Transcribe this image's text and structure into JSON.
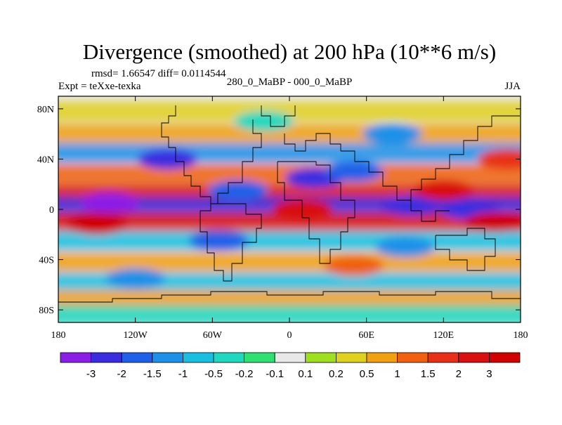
{
  "chart_data": {
    "type": "heatmap",
    "title": "Divergence (smoothed) at 200 hPa (10**6 m/s)",
    "stats_text": "rmsd= 1.66547 diff= 0.0114544",
    "left_label": "Expt = teXxe-texka",
    "center_label": "280_0_MaBP - 000_0_MaBP",
    "right_label": "JJA",
    "x_ticks": [
      "180",
      "120W",
      "60W",
      "0",
      "60E",
      "120E",
      "180"
    ],
    "y_ticks": [
      "80N",
      "40N",
      "0",
      "40S",
      "80S"
    ],
    "x_range": [
      -180,
      180
    ],
    "y_range": [
      -90,
      90
    ],
    "colorbar": {
      "labels": [
        "-3",
        "-2",
        "-1.5",
        "-1",
        "-0.5",
        "-0.2",
        "-0.1",
        "0.1",
        "0.2",
        "0.5",
        "1",
        "1.5",
        "2",
        "3"
      ],
      "colors": [
        "#8b1ee6",
        "#3a2de0",
        "#2060e8",
        "#1e90e8",
        "#18bfe0",
        "#20d8c0",
        "#30e070",
        "#e8e8e8",
        "#9ee020",
        "#e0d020",
        "#f0a010",
        "#f06010",
        "#e83018",
        "#d81010",
        "#d00000"
      ]
    },
    "bands": [
      {
        "lat": 78,
        "value": 0.3
      },
      {
        "lat": 60,
        "value": 0.9
      },
      {
        "lat": 45,
        "value": -1.2
      },
      {
        "lat": 28,
        "value": 1.1
      },
      {
        "lat": 12,
        "value": 2.5
      },
      {
        "lat": 2,
        "value": -2.6
      },
      {
        "lat": -10,
        "value": 2.8
      },
      {
        "lat": -25,
        "value": -0.6
      },
      {
        "lat": -42,
        "value": 0.7
      },
      {
        "lat": -58,
        "value": -0.8
      },
      {
        "lat": -72,
        "value": 0.6
      },
      {
        "lat": -84,
        "value": -0.4
      }
    ],
    "blobs": [
      {
        "lon": -140,
        "lat": 5,
        "value": -3.2
      },
      {
        "lon": -95,
        "lat": 40,
        "value": -2.2
      },
      {
        "lon": -40,
        "lat": 15,
        "value": -2.0
      },
      {
        "lon": 20,
        "lat": 25,
        "value": -2.5
      },
      {
        "lon": 50,
        "lat": 30,
        "value": -1.8
      },
      {
        "lon": 95,
        "lat": 3,
        "value": -2.8
      },
      {
        "lon": 140,
        "lat": 0,
        "value": -2.4
      },
      {
        "lon": 10,
        "lat": 0,
        "value": 2.6
      },
      {
        "lon": 120,
        "lat": 15,
        "value": 2.4
      },
      {
        "lon": 160,
        "lat": -10,
        "value": 3.0
      },
      {
        "lon": -150,
        "lat": -12,
        "value": 3.0
      },
      {
        "lon": -55,
        "lat": -25,
        "value": -1.6
      },
      {
        "lon": 50,
        "lat": -45,
        "value": 1.4
      },
      {
        "lon": -120,
        "lat": -55,
        "value": -1.5
      },
      {
        "lon": 90,
        "lat": -30,
        "value": -1.4
      },
      {
        "lon": -20,
        "lat": 70,
        "value": -0.4
      },
      {
        "lon": 80,
        "lat": 60,
        "value": -1.2
      },
      {
        "lon": 170,
        "lat": 40,
        "value": 1.6
      }
    ]
  }
}
